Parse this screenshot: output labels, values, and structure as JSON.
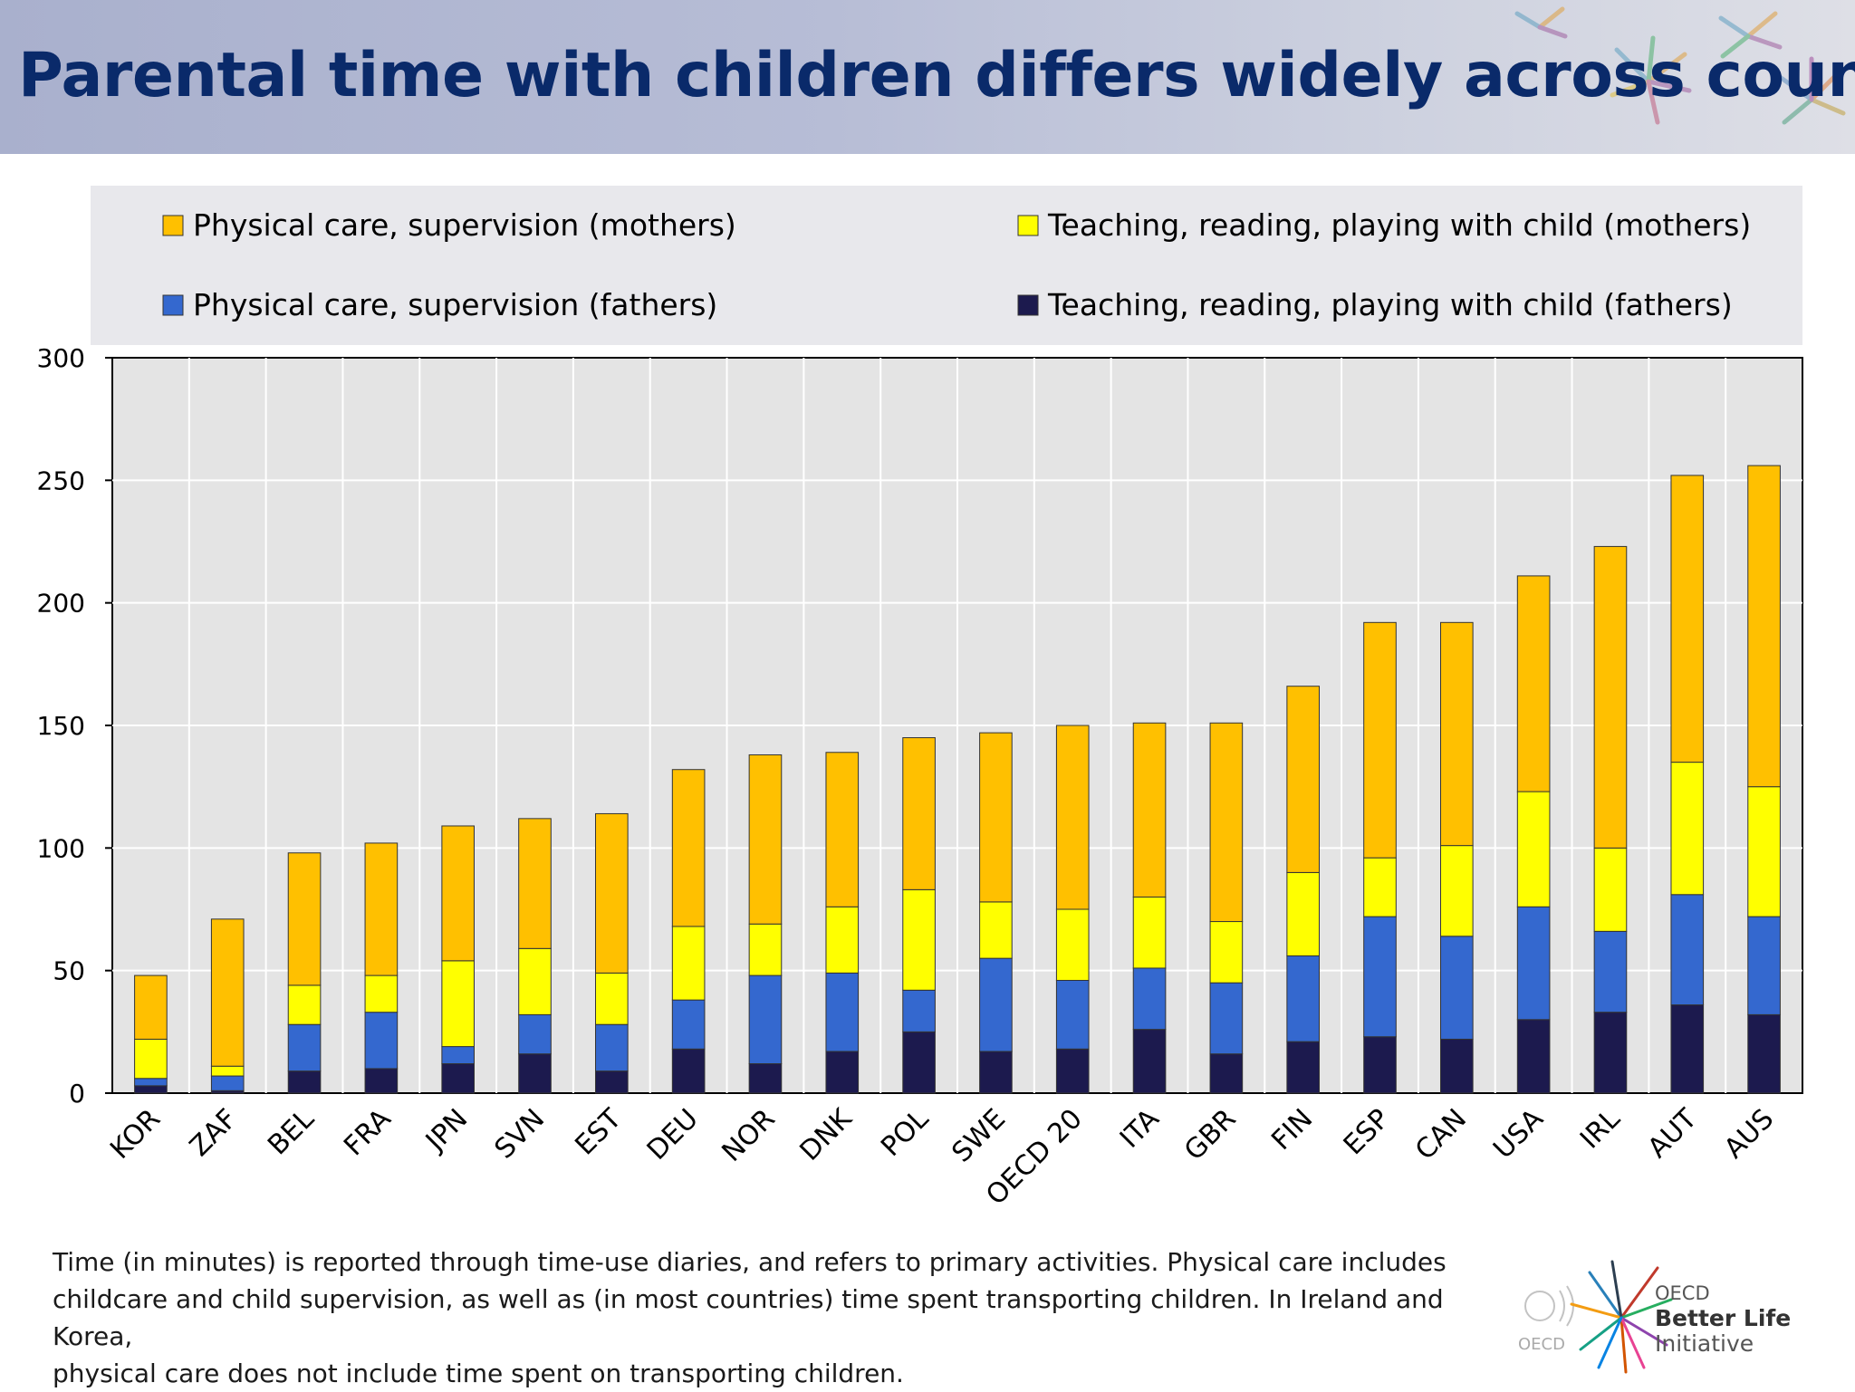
{
  "header": {
    "title": "Parental time with children differs widely across countries"
  },
  "chart_data": {
    "type": "bar",
    "stacked": true,
    "categories": [
      "KOR",
      "ZAF",
      "BEL",
      "FRA",
      "JPN",
      "SVN",
      "EST",
      "DEU",
      "NOR",
      "DNK",
      "POL",
      "SWE",
      "OECD 20",
      "ITA",
      "GBR",
      "FIN",
      "ESP",
      "CAN",
      "USA",
      "IRL",
      "AUT",
      "AUS"
    ],
    "series": [
      {
        "name": "Teaching, reading, playing with child (fathers)",
        "color": "#1c1a4e",
        "values": [
          3,
          1,
          9,
          10,
          12,
          16,
          9,
          18,
          12,
          17,
          25,
          17,
          18,
          26,
          16,
          21,
          23,
          22,
          30,
          33,
          36,
          32
        ]
      },
      {
        "name": "Physical care, supervision (fathers)",
        "color": "#3468cf",
        "values": [
          3,
          6,
          19,
          23,
          7,
          16,
          19,
          20,
          36,
          32,
          17,
          38,
          28,
          25,
          29,
          35,
          49,
          42,
          46,
          33,
          45,
          40
        ]
      },
      {
        "name": "Teaching, reading, playing with child (mothers)",
        "color": "#ffff00",
        "values": [
          16,
          4,
          16,
          15,
          35,
          27,
          21,
          30,
          21,
          27,
          41,
          23,
          29,
          29,
          25,
          34,
          24,
          37,
          47,
          34,
          54,
          53
        ]
      },
      {
        "name": "Physical care, supervision (mothers)",
        "color": "#ffc000",
        "values": [
          26,
          60,
          54,
          54,
          55,
          53,
          65,
          64,
          69,
          63,
          62,
          69,
          75,
          71,
          81,
          76,
          96,
          91,
          88,
          123,
          117,
          131
        ]
      }
    ],
    "legend": {
      "placement": "top",
      "order": [
        "Physical care, supervision (mothers)",
        "Teaching, reading, playing with child (mothers)",
        "Physical care, supervision (fathers)",
        "Teaching, reading, playing with child (fathers)"
      ]
    },
    "ylim": [
      0,
      300
    ],
    "yticks": [
      0,
      50,
      100,
      150,
      200,
      250,
      300
    ],
    "grid": true,
    "title": "",
    "xlabel": "",
    "ylabel": ""
  },
  "footnote": {
    "lines": [
      "Time (in minutes) is reported through time-use diaries, and refers to primary activities.  Physical care includes",
      "childcare and child supervision, as well as (in most countries) time spent transporting children. In Ireland and Korea,",
      "physical care does not include time spent on transporting children."
    ]
  },
  "logo": {
    "org": "OECD",
    "line1": "OECD",
    "line2": "Better Life",
    "line3": "Initiative"
  }
}
